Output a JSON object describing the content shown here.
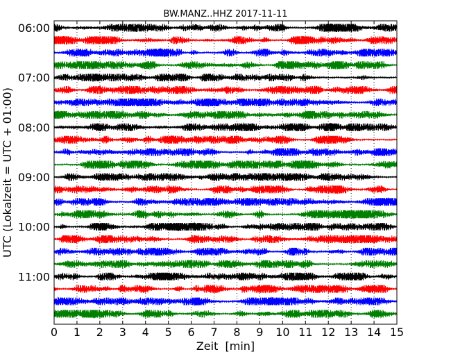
{
  "chart_data": {
    "type": "line",
    "title": "BW.MANZ..HHZ 2017-11-11",
    "xlabel": "Zeit  [min]",
    "ylabel": "UTC (Lokalzeit = UTC + 01:00)",
    "xlim": [
      0,
      15
    ],
    "x_ticks": [
      "0",
      "1",
      "2",
      "3",
      "4",
      "5",
      "6",
      "7",
      "8",
      "9",
      "10",
      "11",
      "12",
      "13",
      "14",
      "15"
    ],
    "y_tick_labels": [
      "06:00",
      "07:00",
      "08:00",
      "09:00",
      "10:00",
      "11:00"
    ],
    "grid": "vertical dotted",
    "trace_colors": [
      "#000000",
      "#ff0000",
      "#0000ff",
      "#008000"
    ],
    "traces": [
      {
        "start": "06:00"
      },
      {
        "start": "06:15"
      },
      {
        "start": "06:30"
      },
      {
        "start": "06:45"
      },
      {
        "start": "07:00"
      },
      {
        "start": "07:15"
      },
      {
        "start": "07:30"
      },
      {
        "start": "07:45"
      },
      {
        "start": "08:00"
      },
      {
        "start": "08:15"
      },
      {
        "start": "08:30"
      },
      {
        "start": "08:45"
      },
      {
        "start": "09:00"
      },
      {
        "start": "09:15"
      },
      {
        "start": "09:30"
      },
      {
        "start": "09:45"
      },
      {
        "start": "10:00"
      },
      {
        "start": "10:15"
      },
      {
        "start": "10:30"
      },
      {
        "start": "10:45"
      },
      {
        "start": "11:00"
      },
      {
        "start": "11:15"
      },
      {
        "start": "11:30"
      },
      {
        "start": "11:45"
      }
    ]
  }
}
